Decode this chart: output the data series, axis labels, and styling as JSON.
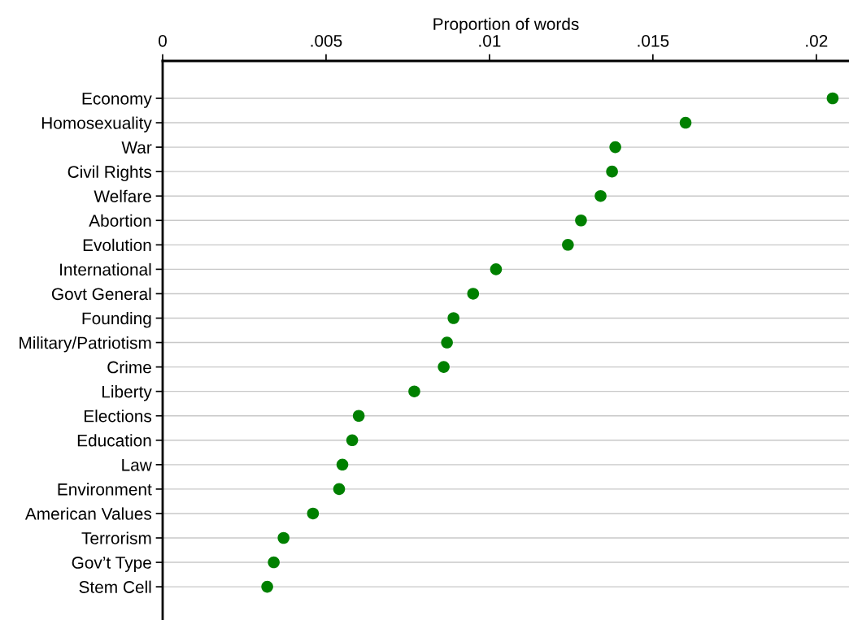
{
  "chart_data": {
    "type": "scatter",
    "orientation": "horizontal",
    "xlabel": "Proportion of words",
    "categories": [
      "Economy",
      "Homosexuality",
      "War",
      "Civil Rights",
      "Welfare",
      "Abortion",
      "Evolution",
      "International",
      "Govt General",
      "Founding",
      "Military/Patriotism",
      "Crime",
      "Liberty",
      "Elections",
      "Education",
      "Law",
      "Environment",
      "American Values",
      "Terrorism",
      "Gov’t Type",
      "Stem Cell"
    ],
    "values": [
      0.0205,
      0.016,
      0.01385,
      0.01375,
      0.0134,
      0.0128,
      0.0124,
      0.0102,
      0.0095,
      0.0089,
      0.0087,
      0.0086,
      0.0077,
      0.006,
      0.0058,
      0.0055,
      0.0054,
      0.0046,
      0.0037,
      0.0034,
      0.0032
    ],
    "color": "#008000",
    "marker": "circle",
    "grid": "y",
    "xlim": [
      0,
      0.021
    ],
    "xticks": [
      0,
      {
        "value": 0.005,
        "label": ".005"
      },
      {
        "value": 0.01,
        "label": ".01"
      },
      {
        "value": 0.015,
        "label": ".015"
      },
      {
        "value": 0.02,
        "label": ".02"
      }
    ]
  }
}
